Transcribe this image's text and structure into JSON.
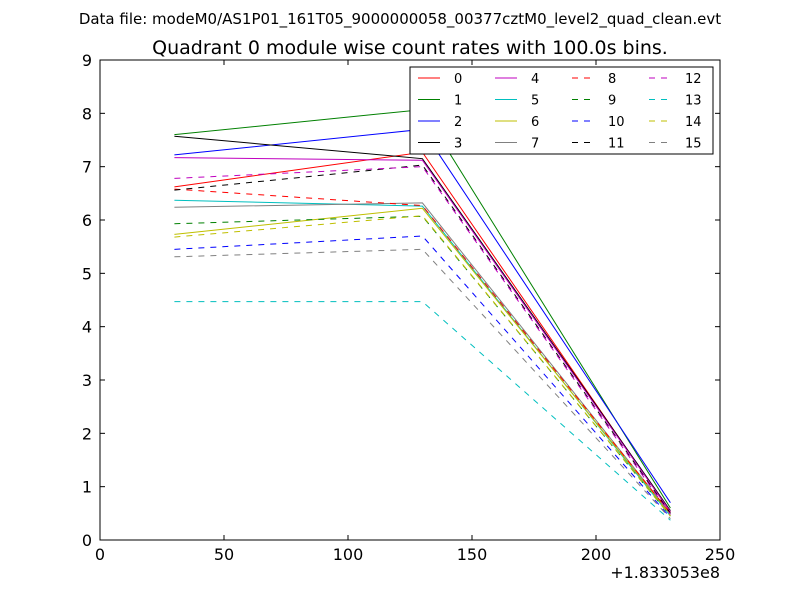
{
  "chart_data": {
    "type": "line",
    "suptitle": "Data file: modeM0/AS1P01_161T05_9000000058_00377cztM0_level2_quad_clean.evt",
    "title": "Quadrant 0 module wise count rates with 100.0s bins.",
    "xlabel": "",
    "ylabel": "",
    "x_offset_label": "+1.833053e8",
    "xlim": [
      0,
      250
    ],
    "ylim": [
      0,
      9
    ],
    "xticks": [
      0,
      50,
      100,
      150,
      200,
      250
    ],
    "yticks": [
      0,
      1,
      2,
      3,
      4,
      5,
      6,
      7,
      8,
      9
    ],
    "grid": false,
    "legend_position": "top-right",
    "legend_columns": 4,
    "x": [
      30,
      130,
      230
    ],
    "series": [
      {
        "name": "0",
        "values": [
          6.62,
          7.27,
          0.52
        ],
        "color": "#ff0000",
        "style": "solid"
      },
      {
        "name": "1",
        "values": [
          7.6,
          8.07,
          0.6
        ],
        "color": "#008000",
        "style": "solid"
      },
      {
        "name": "2",
        "values": [
          7.22,
          7.7,
          0.7
        ],
        "color": "#0000ff",
        "style": "solid"
      },
      {
        "name": "3",
        "values": [
          7.57,
          7.15,
          0.55
        ],
        "color": "#000000",
        "style": "solid"
      },
      {
        "name": "4",
        "values": [
          7.17,
          7.12,
          0.53
        ],
        "color": "#bf00bf",
        "style": "solid"
      },
      {
        "name": "5",
        "values": [
          6.37,
          6.26,
          0.45
        ],
        "color": "#00bfbf",
        "style": "solid"
      },
      {
        "name": "6",
        "values": [
          5.73,
          6.22,
          0.48
        ],
        "color": "#bfbf00",
        "style": "solid"
      },
      {
        "name": "7",
        "values": [
          6.24,
          6.32,
          0.5
        ],
        "color": "#808080",
        "style": "solid"
      },
      {
        "name": "8",
        "values": [
          6.58,
          6.27,
          0.5
        ],
        "color": "#ff0000",
        "style": "dashed"
      },
      {
        "name": "9",
        "values": [
          5.93,
          6.07,
          0.45
        ],
        "color": "#008000",
        "style": "dashed"
      },
      {
        "name": "10",
        "values": [
          5.45,
          5.7,
          0.42
        ],
        "color": "#0000ff",
        "style": "dashed"
      },
      {
        "name": "11",
        "values": [
          6.56,
          7.03,
          0.5
        ],
        "color": "#000000",
        "style": "dashed"
      },
      {
        "name": "12",
        "values": [
          6.78,
          7.0,
          0.48
        ],
        "color": "#bf00bf",
        "style": "dashed"
      },
      {
        "name": "13",
        "values": [
          4.47,
          4.47,
          0.37
        ],
        "color": "#00bfbf",
        "style": "dashed"
      },
      {
        "name": "14",
        "values": [
          5.68,
          6.08,
          0.45
        ],
        "color": "#bfbf00",
        "style": "dashed"
      },
      {
        "name": "15",
        "values": [
          5.31,
          5.45,
          0.4
        ],
        "color": "#808080",
        "style": "dashed"
      }
    ]
  }
}
